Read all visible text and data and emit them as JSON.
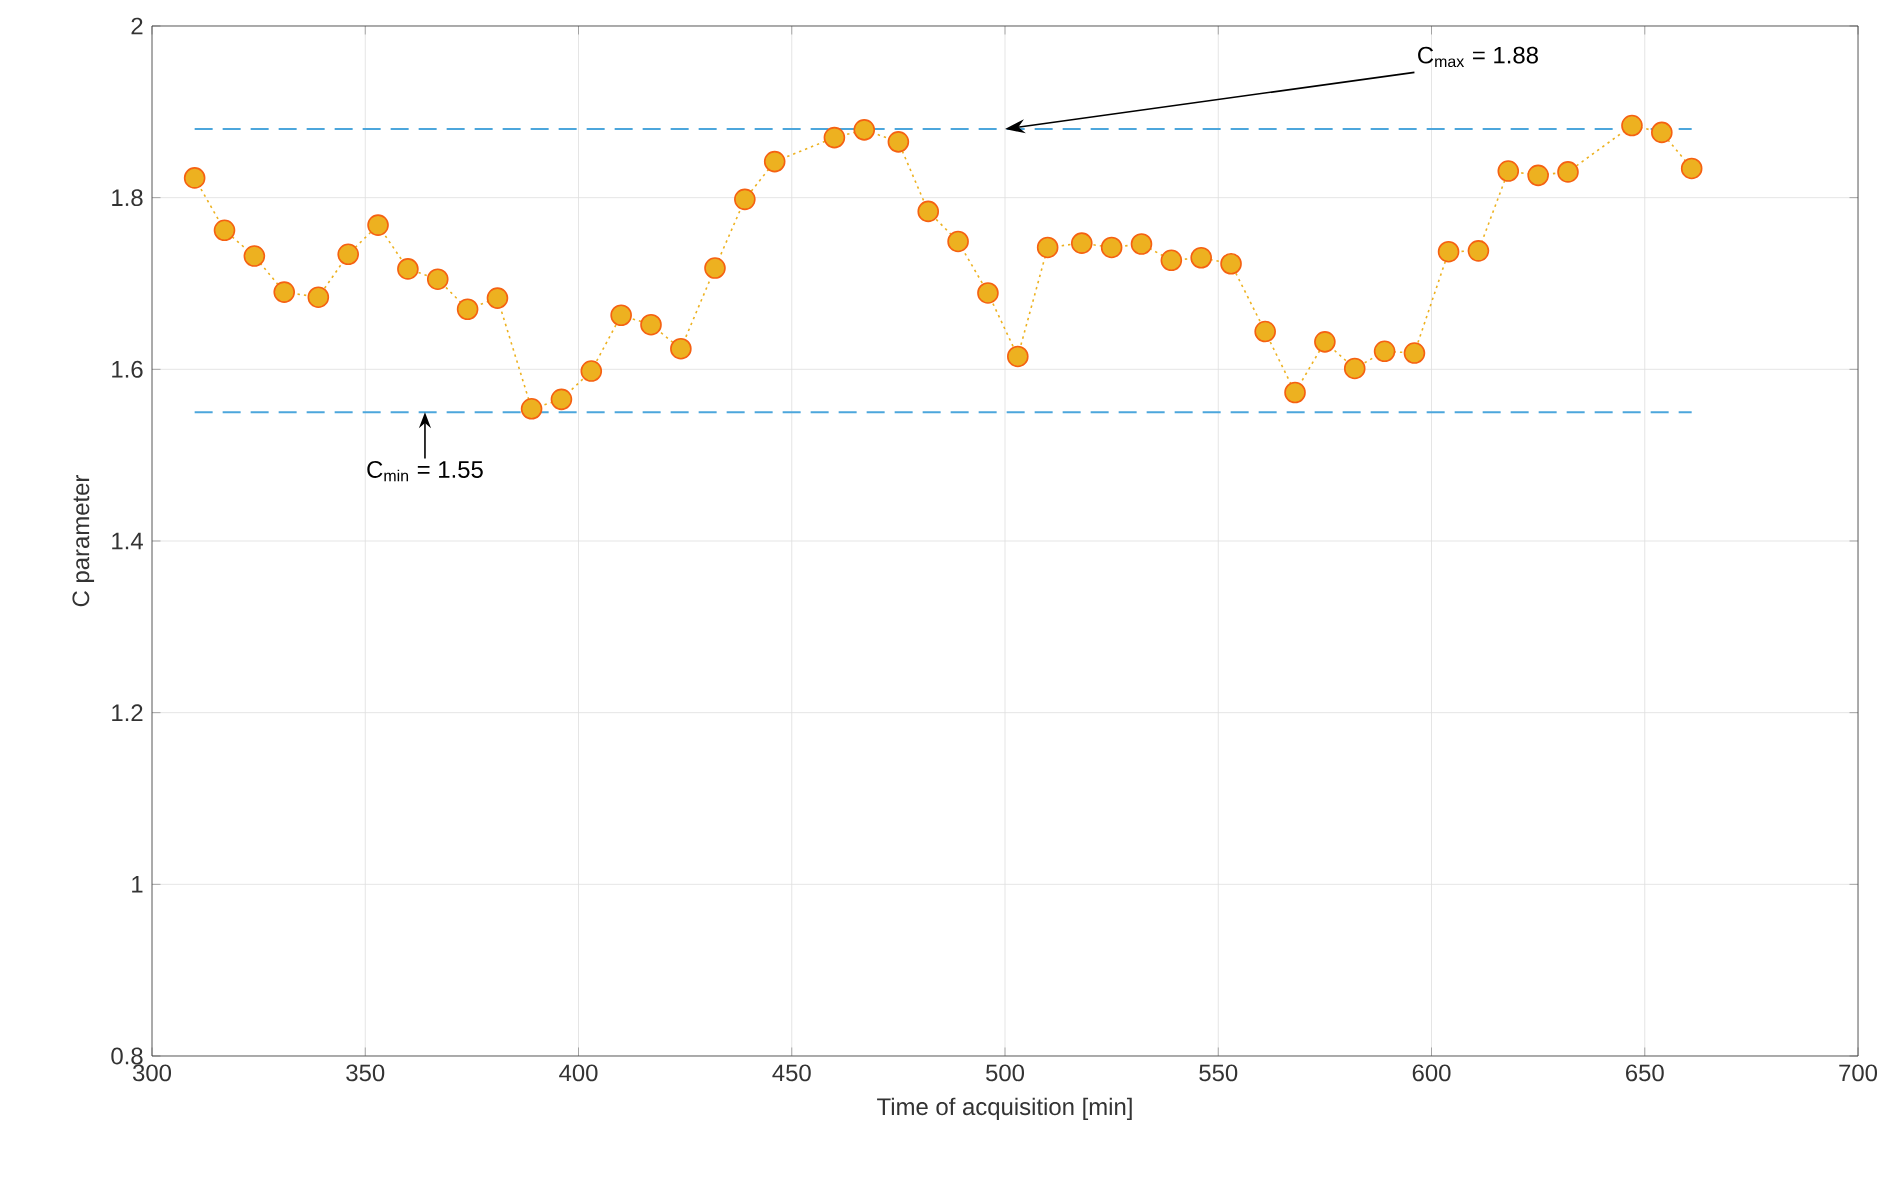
{
  "chart_data": {
    "type": "line",
    "xlabel": "Time of acquisition [min]",
    "ylabel": "C parameter",
    "x": [
      310,
      317,
      324,
      331,
      339,
      346,
      353,
      360,
      367,
      374,
      381,
      389,
      396,
      403,
      410,
      417,
      424,
      432,
      439,
      446,
      460,
      467,
      475,
      482,
      489,
      496,
      503,
      510,
      518,
      525,
      532,
      539,
      546,
      553,
      561,
      568,
      575,
      582,
      589,
      596,
      604,
      611,
      618,
      625,
      632,
      647,
      654,
      661
    ],
    "series": [
      {
        "color": "#edb120",
        "marker": "circle",
        "line_style": "dotted",
        "values": [
          1.823,
          1.762,
          1.732,
          1.69,
          1.684,
          1.734,
          1.768,
          1.717,
          1.705,
          1.67,
          1.683,
          1.554,
          1.565,
          1.598,
          1.663,
          1.652,
          1.624,
          1.718,
          1.798,
          1.842,
          1.87,
          1.879,
          1.865,
          1.784,
          1.749,
          1.689,
          1.615,
          1.742,
          1.747,
          1.742,
          1.746,
          1.727,
          1.73,
          1.723,
          1.644,
          1.573,
          1.632,
          1.601,
          1.621,
          1.619,
          1.737,
          1.738,
          1.831,
          1.826,
          1.83,
          1.884,
          1.876,
          1.834
        ]
      }
    ],
    "xlim": [
      300,
      700
    ],
    "ylim": [
      0.8,
      2
    ],
    "xticks": [
      300,
      350,
      400,
      450,
      500,
      550,
      600,
      650,
      700
    ],
    "yticks": [
      0.8,
      1,
      1.2,
      1.4,
      1.6,
      1.8,
      2
    ],
    "grid": true,
    "ref_lines": [
      {
        "axis": "y",
        "value": 1.88,
        "label": "C$_{max}$ = 1.88",
        "color": "#4ca6dc",
        "line_style": "dashed"
      },
      {
        "axis": "y",
        "value": 1.55,
        "label": "C$_{min}$ = 1.55",
        "color": "#4ca6dc",
        "line_style": "dashed"
      }
    ]
  }
}
